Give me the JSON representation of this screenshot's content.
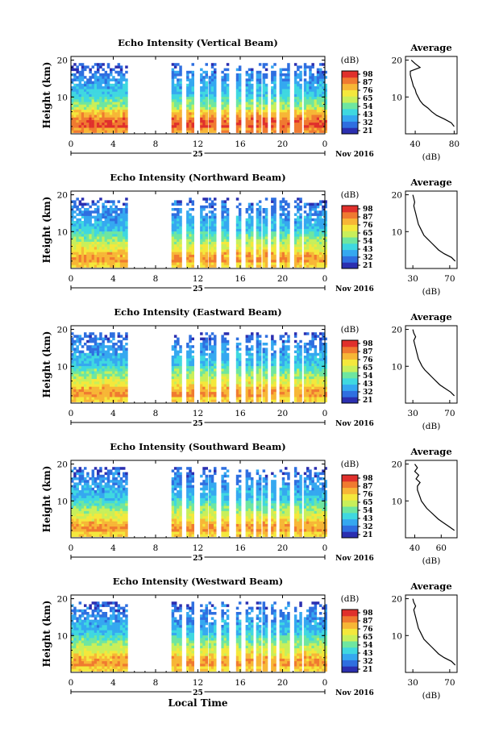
{
  "chart_data": [
    {
      "type": "heatmap",
      "title": "Echo Intensity (Vertical Beam)",
      "ylabel": "Height (km)",
      "yticks": [
        "20",
        "10"
      ],
      "xticks": [
        "0",
        "4",
        "8",
        "12",
        "16",
        "20",
        "0"
      ],
      "date_day": "25",
      "date_month": "Nov 2016",
      "colorbar": {
        "unit": "(dB)",
        "ticks": [
          "98",
          "87",
          "76",
          "65",
          "54",
          "43",
          "32",
          "21"
        ]
      },
      "average": {
        "title": "Average",
        "xlabel": "(dB)",
        "xticks": [
          "40",
          "80"
        ],
        "xlim": [
          30,
          83
        ],
        "yticks": [
          "20",
          "10"
        ],
        "profile": [
          [
            80,
            2
          ],
          [
            77,
            3
          ],
          [
            70,
            4
          ],
          [
            62,
            5
          ],
          [
            57,
            6
          ],
          [
            53,
            7
          ],
          [
            48,
            8
          ],
          [
            45,
            9
          ],
          [
            43,
            10
          ],
          [
            41,
            11
          ],
          [
            40,
            12
          ],
          [
            38,
            13
          ],
          [
            37,
            14
          ],
          [
            36,
            15
          ],
          [
            35,
            16
          ],
          [
            35,
            17
          ],
          [
            45,
            18
          ],
          [
            40,
            19
          ],
          [
            36,
            20
          ]
        ]
      }
    },
    {
      "type": "heatmap",
      "title": "Echo Intensity (Northward Beam)",
      "ylabel": "Height (km)",
      "yticks": [
        "20",
        "10"
      ],
      "xticks": [
        "0",
        "4",
        "8",
        "12",
        "16",
        "20",
        "0"
      ],
      "date_day": "25",
      "date_month": "Nov 2016",
      "colorbar": {
        "unit": "(dB)",
        "ticks": [
          "98",
          "87",
          "76",
          "65",
          "54",
          "43",
          "32",
          "21"
        ]
      },
      "average": {
        "title": "Average",
        "xlabel": "(dB)",
        "xticks": [
          "30",
          "70"
        ],
        "xlim": [
          22,
          78
        ],
        "yticks": [
          "20",
          "10"
        ],
        "profile": [
          [
            76,
            2
          ],
          [
            72,
            3
          ],
          [
            64,
            4
          ],
          [
            58,
            5
          ],
          [
            54,
            6
          ],
          [
            50,
            7
          ],
          [
            46,
            8
          ],
          [
            42,
            9
          ],
          [
            40,
            10
          ],
          [
            38,
            11
          ],
          [
            36,
            12
          ],
          [
            35,
            13
          ],
          [
            34,
            14
          ],
          [
            33,
            15
          ],
          [
            32,
            16
          ],
          [
            31,
            17
          ],
          [
            32,
            18
          ],
          [
            31,
            19
          ],
          [
            30,
            20
          ]
        ]
      }
    },
    {
      "type": "heatmap",
      "title": "Echo Intensity (Eastward Beam)",
      "ylabel": "Height (km)",
      "yticks": [
        "20",
        "10"
      ],
      "xticks": [
        "0",
        "4",
        "8",
        "12",
        "16",
        "20",
        "0"
      ],
      "date_day": "25",
      "date_month": "Nov 2016",
      "colorbar": {
        "unit": "(dB)",
        "ticks": [
          "98",
          "87",
          "76",
          "65",
          "54",
          "43",
          "32",
          "21"
        ]
      },
      "average": {
        "title": "Average",
        "xlabel": "(dB)",
        "xticks": [
          "30",
          "70"
        ],
        "xlim": [
          22,
          78
        ],
        "yticks": [
          "20",
          "10"
        ],
        "profile": [
          [
            75,
            2
          ],
          [
            71,
            3
          ],
          [
            65,
            4
          ],
          [
            59,
            5
          ],
          [
            55,
            6
          ],
          [
            51,
            7
          ],
          [
            47,
            8
          ],
          [
            43,
            9
          ],
          [
            40,
            10
          ],
          [
            38,
            11
          ],
          [
            36,
            12
          ],
          [
            35,
            13
          ],
          [
            34,
            14
          ],
          [
            33,
            15
          ],
          [
            32,
            16
          ],
          [
            31,
            17
          ],
          [
            33,
            18
          ],
          [
            31,
            19
          ],
          [
            30,
            20
          ]
        ]
      }
    },
    {
      "type": "heatmap",
      "title": "Echo Intensity (Southward Beam)",
      "ylabel": "Height (km)",
      "yticks": [
        "20",
        "10"
      ],
      "xticks": [
        "0",
        "4",
        "8",
        "12",
        "16",
        "20",
        "0"
      ],
      "date_day": "25",
      "date_month": "Nov 2016",
      "colorbar": {
        "unit": "(dB)",
        "ticks": [
          "98",
          "87",
          "76",
          "65",
          "54",
          "43",
          "32",
          "21"
        ]
      },
      "average": {
        "title": "Average",
        "xlabel": "(dB)",
        "xticks": [
          "40",
          "60"
        ],
        "xlim": [
          33,
          72
        ],
        "yticks": [
          "20",
          "10"
        ],
        "profile": [
          [
            70,
            2
          ],
          [
            66,
            3
          ],
          [
            62,
            4
          ],
          [
            58,
            5
          ],
          [
            55,
            6
          ],
          [
            52,
            7
          ],
          [
            49,
            8
          ],
          [
            47,
            9
          ],
          [
            45,
            10
          ],
          [
            44,
            11
          ],
          [
            43,
            12
          ],
          [
            42,
            13
          ],
          [
            42,
            14
          ],
          [
            44,
            15
          ],
          [
            41,
            16
          ],
          [
            43,
            17
          ],
          [
            40,
            18
          ],
          [
            42,
            19
          ],
          [
            40,
            20
          ]
        ]
      }
    },
    {
      "type": "heatmap",
      "title": "Echo Intensity (Westward Beam)",
      "ylabel": "Height (km)",
      "yticks": [
        "20",
        "10"
      ],
      "xticks": [
        "0",
        "4",
        "8",
        "12",
        "16",
        "20",
        "0"
      ],
      "date_day": "25",
      "date_month": "Nov 2016",
      "xlabel": "Local Time",
      "colorbar": {
        "unit": "(dB)",
        "ticks": [
          "98",
          "87",
          "76",
          "65",
          "54",
          "43",
          "32",
          "21"
        ]
      },
      "average": {
        "title": "Average",
        "xlabel": "(dB)",
        "xticks": [
          "30",
          "70"
        ],
        "xlim": [
          22,
          78
        ],
        "yticks": [
          "20",
          "10"
        ],
        "profile": [
          [
            76,
            2
          ],
          [
            72,
            3
          ],
          [
            64,
            4
          ],
          [
            58,
            5
          ],
          [
            54,
            6
          ],
          [
            50,
            7
          ],
          [
            46,
            8
          ],
          [
            42,
            9
          ],
          [
            40,
            10
          ],
          [
            38,
            11
          ],
          [
            36,
            12
          ],
          [
            35,
            13
          ],
          [
            34,
            14
          ],
          [
            33,
            15
          ],
          [
            32,
            16
          ],
          [
            31,
            17
          ],
          [
            33,
            18
          ],
          [
            31,
            19
          ],
          [
            30,
            20
          ]
        ]
      }
    }
  ],
  "colors": {
    "scale": [
      "#2b2fb0",
      "#2f6fe0",
      "#35a8f0",
      "#3fd8e0",
      "#6ee6a0",
      "#c8ef5a",
      "#f4e83c",
      "#f7b636",
      "#f07a30",
      "#e0302c"
    ],
    "line": "#000000"
  }
}
